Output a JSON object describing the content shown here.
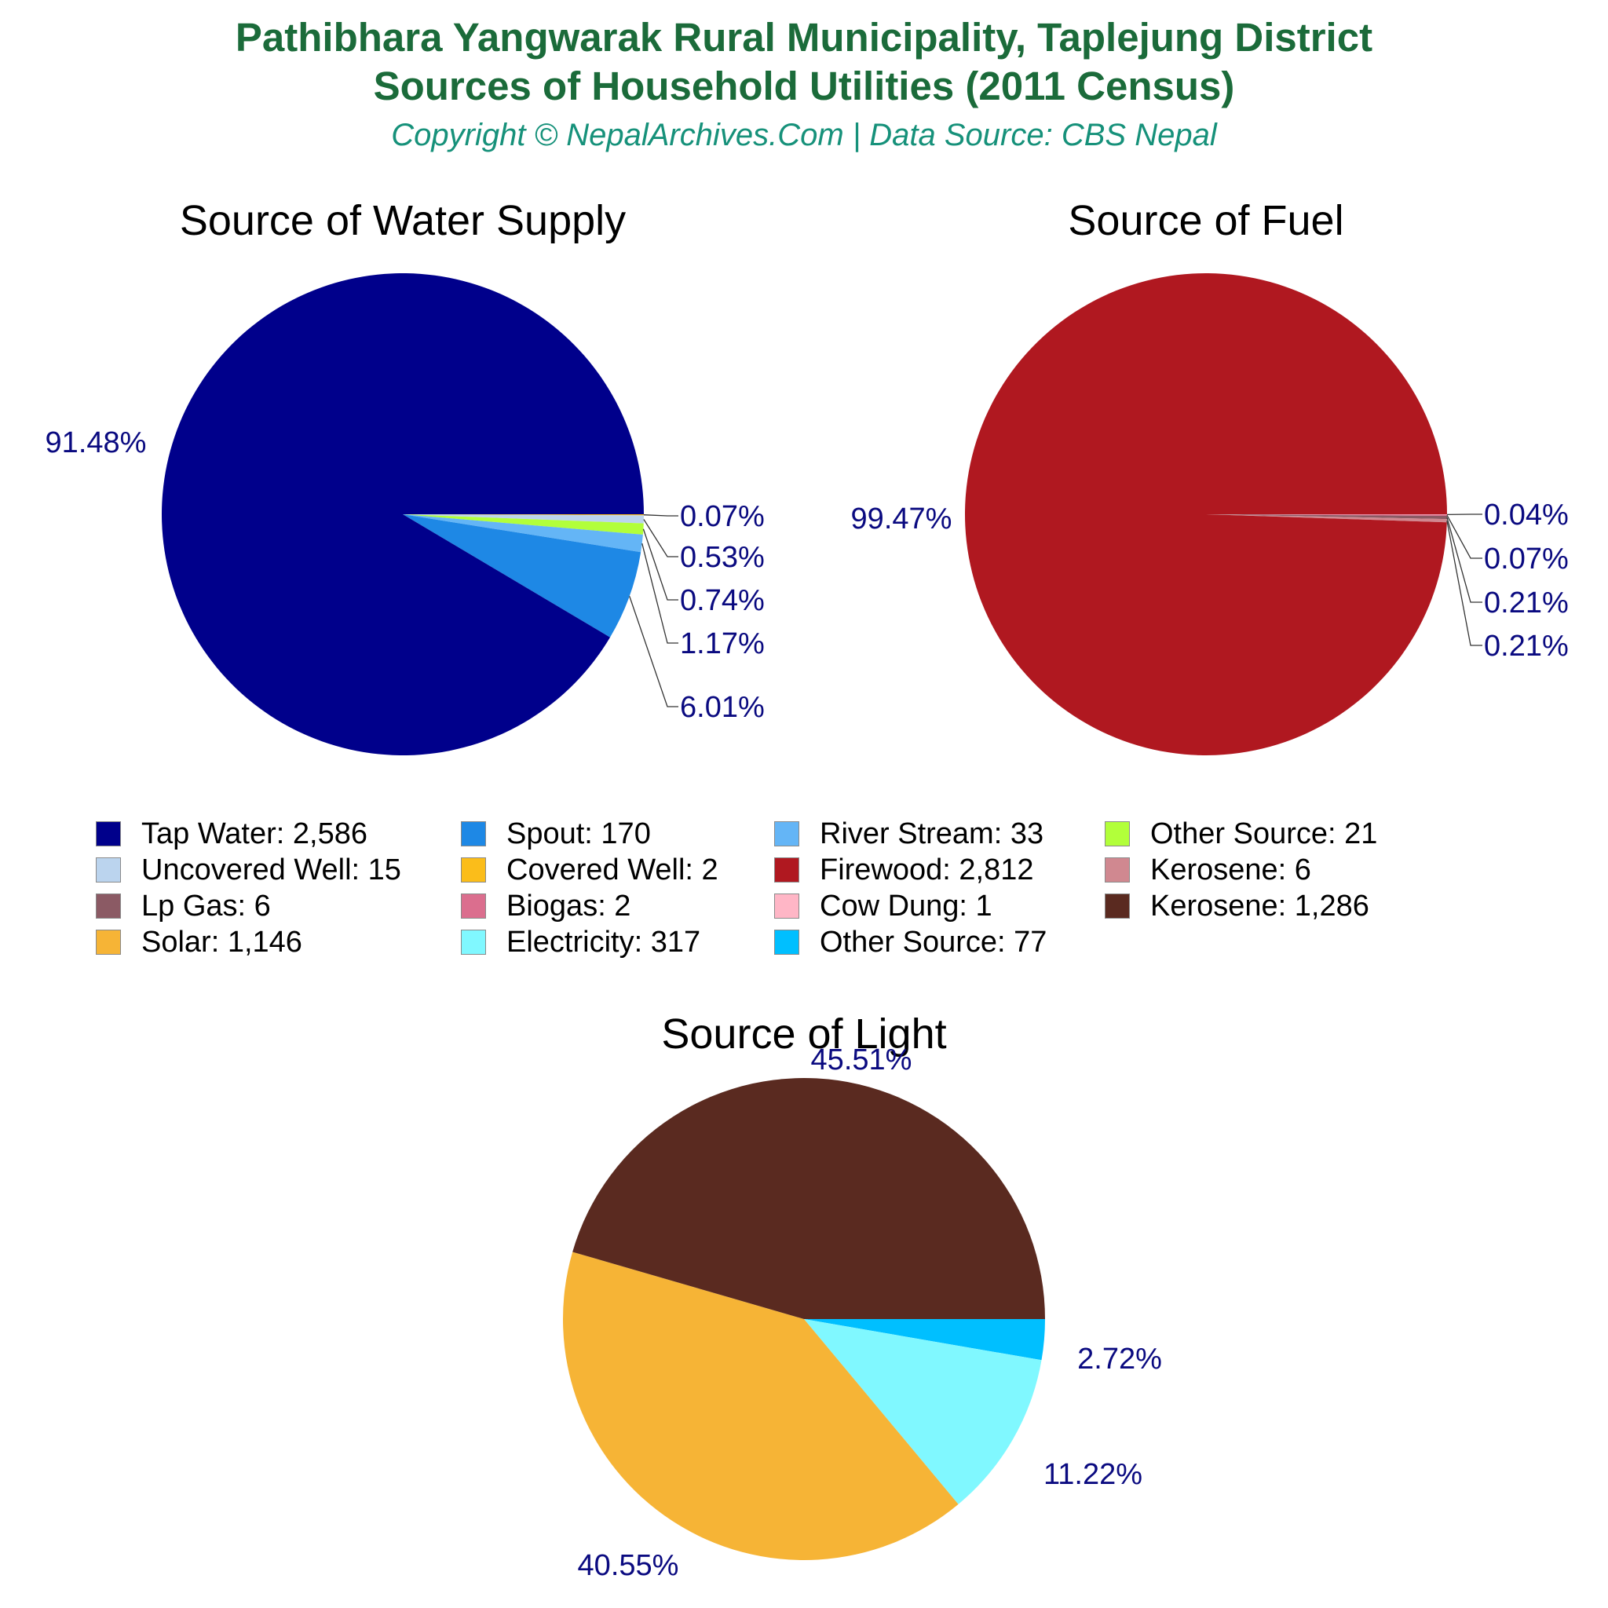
{
  "header": {
    "title_line1": "Pathibhara Yangwarak Rural Municipality, Taplejung District",
    "title_line2": "Sources of Household Utilities (2011 Census)",
    "copyright": "Copyright © NepalArchives.Com | Data Source: CBS Nepal"
  },
  "colors": {
    "title": "#1b6b3a",
    "copyright": "#16917a",
    "percent_labels": "#0a0a80"
  },
  "legend": {
    "items": [
      {
        "label": "Tap Water: 2,586",
        "color": "#00008b"
      },
      {
        "label": "Spout: 170",
        "color": "#1e88e5"
      },
      {
        "label": "River Stream: 33",
        "color": "#64b5f6"
      },
      {
        "label": "Other Source: 21",
        "color": "#b2ff3a"
      },
      {
        "label": "Uncovered Well: 15",
        "color": "#bbd4ee"
      },
      {
        "label": "Covered Well: 2",
        "color": "#fbbd1a"
      },
      {
        "label": "Firewood: 2,812",
        "color": "#b01820"
      },
      {
        "label": "Kerosene: 6",
        "color": "#d08890"
      },
      {
        "label": "Lp Gas: 6",
        "color": "#8b5a64"
      },
      {
        "label": "Biogas: 2",
        "color": "#db6e8e"
      },
      {
        "label": "Cow Dung: 1",
        "color": "#ffb6c6"
      },
      {
        "label": "Kerosene: 1,286",
        "color": "#5a2a20"
      },
      {
        "label": "Solar: 1,146",
        "color": "#f6b436"
      },
      {
        "label": "Electricity: 317",
        "color": "#80f8ff"
      },
      {
        "label": "Other Source: 77",
        "color": "#00bfff"
      }
    ]
  },
  "chart_data": [
    {
      "type": "pie",
      "title": "Source of Water Supply",
      "categories": [
        "Tap Water",
        "Spout",
        "River Stream",
        "Other Source",
        "Uncovered Well",
        "Covered Well"
      ],
      "values": [
        2586,
        170,
        33,
        21,
        15,
        2
      ],
      "percent_labels": [
        "91.48%",
        "6.01%",
        "1.17%",
        "0.74%",
        "0.53%",
        "0.07%"
      ],
      "colors": [
        "#00008b",
        "#1e88e5",
        "#64b5f6",
        "#b2ff3a",
        "#bbd4ee",
        "#fbbd1a"
      ]
    },
    {
      "type": "pie",
      "title": "Source of Fuel",
      "categories": [
        "Firewood",
        "Kerosene",
        "Lp Gas",
        "Biogas",
        "Cow Dung"
      ],
      "values": [
        2812,
        6,
        6,
        2,
        1
      ],
      "percent_labels": [
        "99.47%",
        "0.21%",
        "0.21%",
        "0.07%",
        "0.04%"
      ],
      "colors": [
        "#b01820",
        "#d08890",
        "#8b5a64",
        "#db6e8e",
        "#ffb6c6"
      ]
    },
    {
      "type": "pie",
      "title": "Source of Light",
      "categories": [
        "Kerosene",
        "Solar",
        "Electricity",
        "Other Source"
      ],
      "values": [
        1286,
        1146,
        317,
        77
      ],
      "percent_labels": [
        "45.51%",
        "40.55%",
        "11.22%",
        "2.72%"
      ],
      "colors": [
        "#5a2a20",
        "#f6b436",
        "#80f8ff",
        "#00bfff"
      ]
    }
  ]
}
